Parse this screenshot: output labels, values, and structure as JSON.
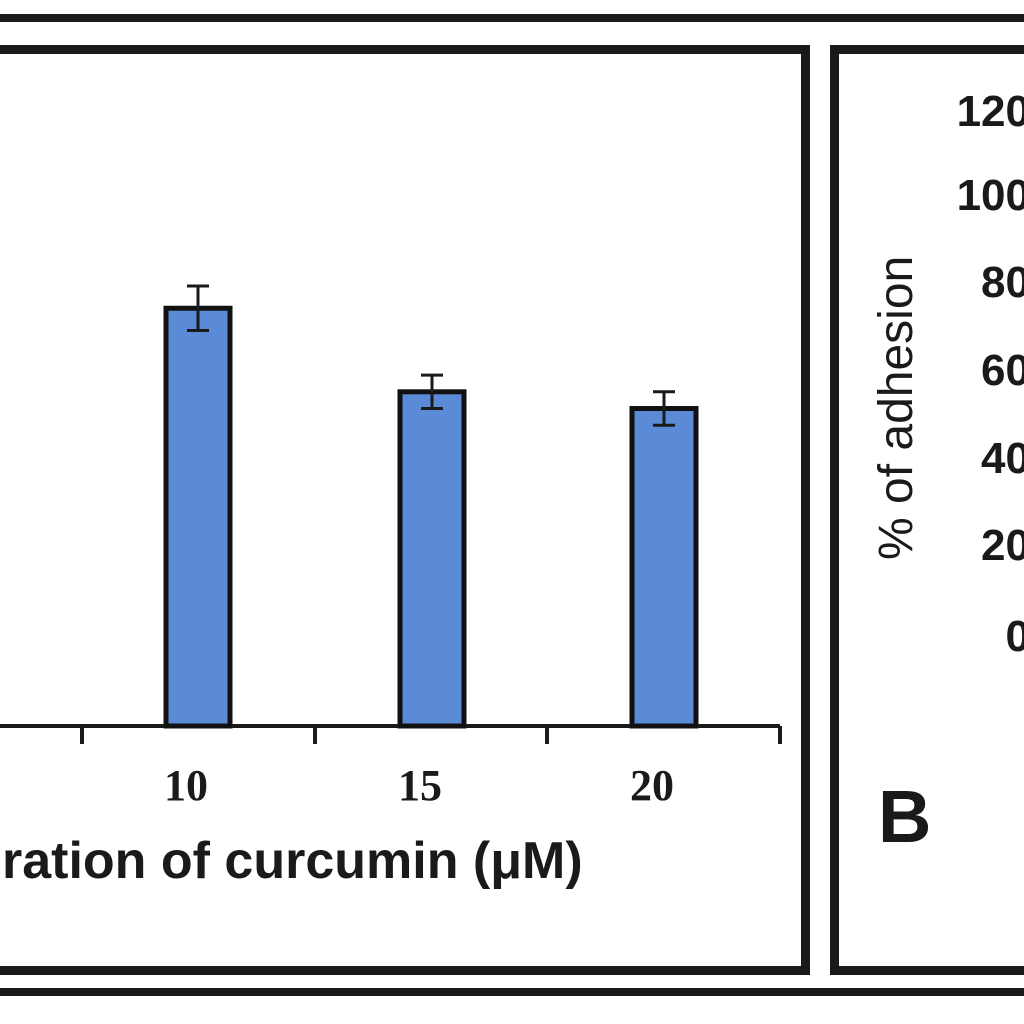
{
  "chart_data": [
    {
      "type": "bar",
      "panel": "A",
      "categories": [
        "10",
        "15",
        "20"
      ],
      "values": [
        75,
        60,
        57
      ],
      "errors": [
        4,
        3,
        3
      ],
      "xlabel": "ration of curcumin (μM)",
      "bar_color": "#5b8ad6",
      "bar_edge_color": "#111111"
    },
    {
      "type": "bar",
      "panel": "B",
      "panel_label": "B",
      "ylabel": "% of adhesion",
      "yticks": [
        "120",
        "100",
        "80",
        "60",
        "40",
        "20",
        "0"
      ],
      "ylim": [
        0,
        120
      ]
    }
  ]
}
